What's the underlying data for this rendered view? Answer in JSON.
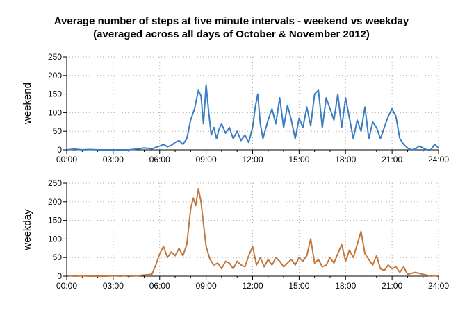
{
  "chart_data": {
    "type": "line",
    "title": "Average number of steps at five minute intervals - weekend vs weekday",
    "subtitle": "(averaged across all days of October & November 2012)",
    "xlabel": "",
    "grid": true,
    "x_ticks": [
      "00:00",
      "03:00",
      "06:00",
      "09:00",
      "12:00",
      "15:00",
      "18:00",
      "21:00",
      "24:00"
    ],
    "xlim": [
      0,
      24
    ],
    "panels": [
      {
        "ylabel": "weekend",
        "ylim": [
          0,
          250
        ],
        "y_ticks": [
          0,
          50,
          100,
          150,
          200,
          250
        ],
        "color": "#3b7dc0",
        "x": [
          0,
          0.5,
          1,
          1.5,
          2,
          2.5,
          3,
          3.5,
          4,
          4.5,
          5,
          5.5,
          6,
          6.25,
          6.5,
          6.75,
          7,
          7.25,
          7.5,
          7.75,
          8,
          8.25,
          8.5,
          8.67,
          8.83,
          9,
          9.17,
          9.33,
          9.5,
          9.67,
          9.83,
          10,
          10.25,
          10.5,
          10.75,
          11,
          11.25,
          11.5,
          11.75,
          12,
          12.17,
          12.33,
          12.5,
          12.67,
          12.83,
          13,
          13.25,
          13.5,
          13.75,
          14,
          14.25,
          14.5,
          14.75,
          15,
          15.25,
          15.5,
          15.75,
          16,
          16.25,
          16.5,
          16.75,
          17,
          17.25,
          17.5,
          17.75,
          18,
          18.25,
          18.5,
          18.75,
          19,
          19.25,
          19.5,
          19.75,
          20,
          20.25,
          20.5,
          20.75,
          21,
          21.25,
          21.5,
          21.75,
          22,
          22.25,
          22.5,
          22.75,
          23,
          23.25,
          23.5,
          23.75,
          24
        ],
        "y": [
          0,
          2,
          0,
          1,
          0,
          0,
          0,
          0,
          0,
          2,
          5,
          3,
          10,
          15,
          8,
          12,
          20,
          25,
          15,
          30,
          80,
          110,
          160,
          145,
          70,
          175,
          100,
          40,
          60,
          30,
          55,
          70,
          45,
          60,
          30,
          50,
          25,
          40,
          20,
          60,
          115,
          150,
          70,
          30,
          55,
          80,
          110,
          70,
          140,
          60,
          120,
          80,
          30,
          85,
          60,
          115,
          65,
          150,
          160,
          60,
          140,
          110,
          80,
          150,
          60,
          140,
          85,
          30,
          80,
          50,
          115,
          30,
          75,
          60,
          30,
          60,
          90,
          110,
          90,
          30,
          15,
          5,
          0,
          2,
          10,
          5,
          0,
          0,
          15,
          5
        ]
      },
      {
        "ylabel": "weekday",
        "ylim": [
          0,
          250
        ],
        "y_ticks": [
          0,
          50,
          100,
          150,
          200,
          250
        ],
        "color": "#c1783e",
        "x": [
          0,
          0.5,
          1,
          1.5,
          2,
          2.5,
          3,
          3.5,
          4,
          4.5,
          5,
          5.5,
          5.75,
          6,
          6.25,
          6.5,
          6.75,
          7,
          7.25,
          7.5,
          7.75,
          8,
          8.17,
          8.33,
          8.5,
          8.67,
          8.83,
          9,
          9.25,
          9.5,
          9.75,
          10,
          10.25,
          10.5,
          10.75,
          11,
          11.25,
          11.5,
          11.75,
          12,
          12.25,
          12.5,
          12.75,
          13,
          13.25,
          13.5,
          13.75,
          14,
          14.25,
          14.5,
          14.75,
          15,
          15.25,
          15.5,
          15.75,
          16,
          16.25,
          16.5,
          16.75,
          17,
          17.25,
          17.5,
          17.75,
          18,
          18.25,
          18.5,
          18.75,
          19,
          19.25,
          19.5,
          19.75,
          20,
          20.25,
          20.5,
          20.75,
          21,
          21.25,
          21.5,
          21.75,
          22,
          22.5,
          23,
          23.5,
          24
        ],
        "y": [
          2,
          0,
          1,
          0,
          0,
          0,
          1,
          0,
          2,
          1,
          3,
          5,
          30,
          60,
          80,
          50,
          65,
          55,
          75,
          55,
          85,
          180,
          210,
          190,
          235,
          200,
          140,
          80,
          45,
          30,
          35,
          20,
          40,
          35,
          20,
          40,
          30,
          25,
          55,
          80,
          30,
          50,
          25,
          45,
          30,
          50,
          40,
          25,
          35,
          45,
          30,
          50,
          40,
          55,
          100,
          35,
          45,
          25,
          30,
          50,
          35,
          60,
          85,
          40,
          70,
          50,
          85,
          120,
          60,
          45,
          30,
          55,
          20,
          15,
          30,
          20,
          25,
          10,
          25,
          5,
          10,
          5,
          0,
          2
        ]
      }
    ]
  }
}
